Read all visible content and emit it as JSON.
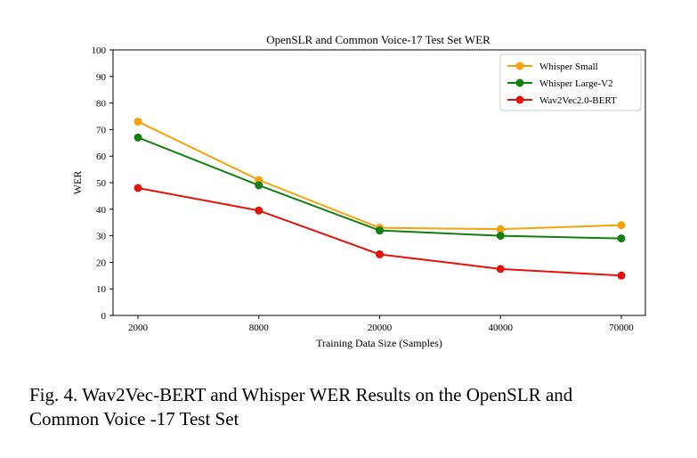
{
  "chart_data": {
    "type": "line",
    "title": "OpenSLR and Common Voice-17 Test Set WER",
    "xlabel": "Training Data Size (Samples)",
    "ylabel": "WER",
    "categories": [
      "2000",
      "8000",
      "20000",
      "40000",
      "70000"
    ],
    "ylim": [
      0,
      100
    ],
    "yticks": [
      "0",
      "10",
      "20",
      "30",
      "40",
      "50",
      "60",
      "70",
      "80",
      "90",
      "100"
    ],
    "grid": false,
    "legend_position": "top-right",
    "series": [
      {
        "name": "Whisper Small",
        "color": "#f5a20c",
        "values": [
          73,
          51,
          33,
          32.5,
          34
        ]
      },
      {
        "name": "Whisper Large-V2",
        "color": "#118011",
        "values": [
          67,
          49,
          32,
          30,
          29
        ]
      },
      {
        "name": "Wav2Vec2.0-BERT",
        "color": "#e3120b",
        "values": [
          48,
          39.5,
          23,
          17.5,
          15
        ]
      }
    ]
  },
  "caption": {
    "line1": "Fig. 4.  Wav2Vec-BERT and Whisper WER Results on the OpenSLR and",
    "line2": "Common Voice -17 Test Set"
  }
}
